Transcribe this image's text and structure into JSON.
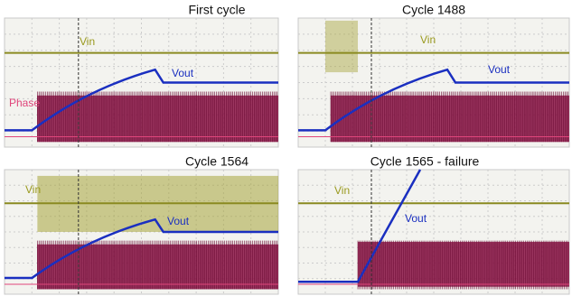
{
  "panels": [
    {
      "title": "First cycle",
      "vin": "Vin",
      "vout": "Vout",
      "phase": "Phase"
    },
    {
      "title": "Cycle 1488",
      "vin": "Vin",
      "vout": "Vout"
    },
    {
      "title": "Cycle 1564",
      "vin": "Vin",
      "vout": "Vout"
    },
    {
      "title": "Cycle 1565 - failure",
      "vin": "Vin",
      "vout": "Vout"
    }
  ]
}
